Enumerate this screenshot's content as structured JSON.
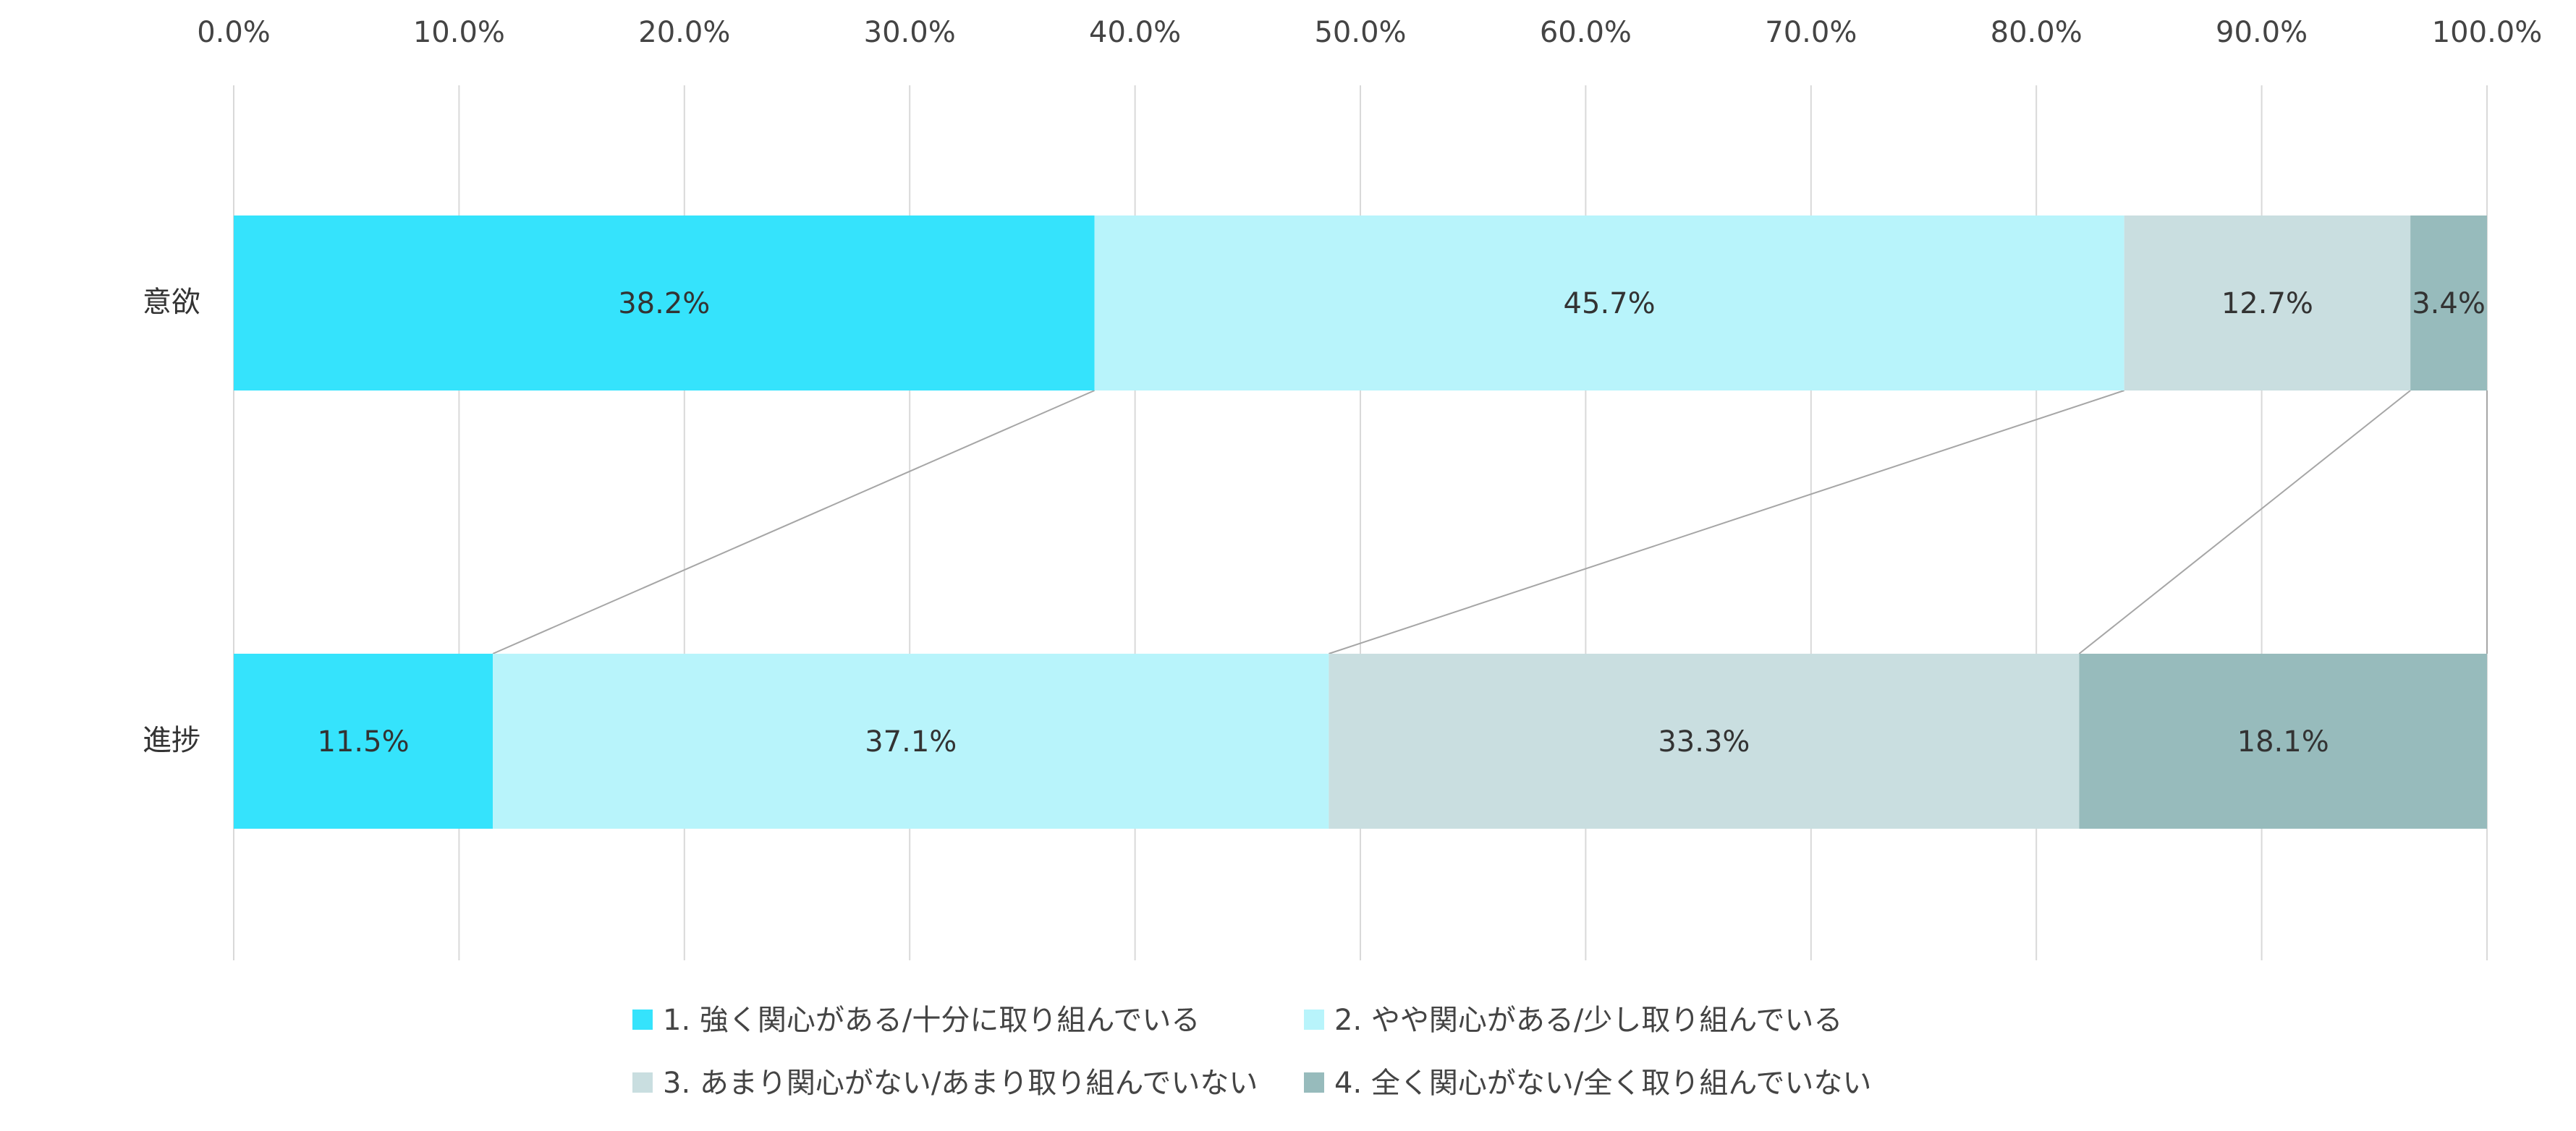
{
  "chart_data": {
    "type": "bar",
    "orientation": "horizontal",
    "stacked": "percent",
    "categories": [
      "意欲",
      "進捗"
    ],
    "series": [
      {
        "name": "1.  強く関心がある/十分に取り組んでいる",
        "color": "#35E3FC",
        "values": [
          38.2,
          11.5
        ],
        "labels": [
          "38.2%",
          "11.5%"
        ]
      },
      {
        "name": "2.  やや関心がある/少し取り組んでいる",
        "color": "#B8F4FB",
        "values": [
          45.7,
          37.1
        ],
        "labels": [
          "45.7%",
          "37.1%"
        ]
      },
      {
        "name": "3.  あまり関心がない/あまり取り組んでいない",
        "color": "#C9DEE0",
        "values": [
          12.7,
          33.3
        ],
        "labels": [
          "12.7%",
          "33.3%"
        ]
      },
      {
        "name": "4.  全く関心がない/全く取り組んでいない",
        "color": "#97BBBC",
        "values": [
          3.4,
          18.1
        ],
        "labels": [
          "3.4%",
          "18.1%"
        ]
      }
    ],
    "xlim": [
      0,
      100
    ],
    "x_ticks": [
      "0.0%",
      "10.0%",
      "20.0%",
      "30.0%",
      "40.0%",
      "50.0%",
      "60.0%",
      "70.0%",
      "80.0%",
      "90.0%",
      "100.0%"
    ],
    "x_axis_position": "top",
    "grid": true,
    "series_lines": true,
    "legend_position": "bottom",
    "colors": {
      "grid": "#D9D9D9",
      "series_line": "#A6A6A6"
    }
  }
}
